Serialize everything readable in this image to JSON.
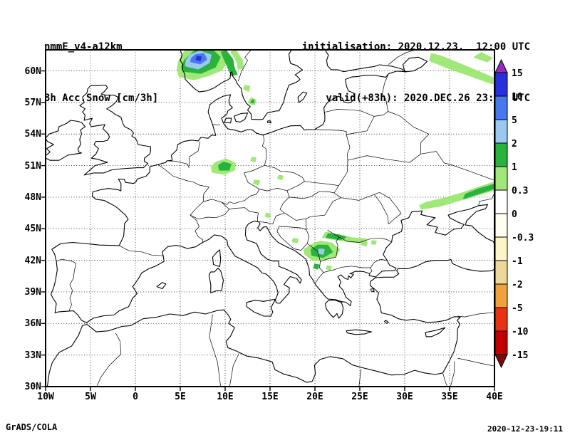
{
  "header": {
    "model": "nmmE_v4-a12km",
    "variable": "3h Acc.Snow [cm/3h]",
    "init": "initialisation: 2020.12.23.  12:00 UTC",
    "valid": "valid(+83h): 2020.DEC.26 23:00 UTC"
  },
  "footer": {
    "left": "GrADS/COLA",
    "right": "2020-12-23-19:11"
  },
  "chart_data": {
    "type": "heatmap",
    "title": "3h Acc.Snow [cm/3h]",
    "region": "Europe",
    "lon_range": [
      -10,
      40
    ],
    "lat_range": [
      30,
      62
    ],
    "grid": {
      "lon_step": 5,
      "lat_step": 3,
      "style": "dotted"
    },
    "x_ticks": [
      {
        "v": -10,
        "label": "10W"
      },
      {
        "v": -5,
        "label": "5W"
      },
      {
        "v": 0,
        "label": "0"
      },
      {
        "v": 5,
        "label": "5E"
      },
      {
        "v": 10,
        "label": "10E"
      },
      {
        "v": 15,
        "label": "15E"
      },
      {
        "v": 20,
        "label": "20E"
      },
      {
        "v": 25,
        "label": "25E"
      },
      {
        "v": 30,
        "label": "30E"
      },
      {
        "v": 35,
        "label": "35E"
      },
      {
        "v": 40,
        "label": "40E"
      }
    ],
    "y_ticks": [
      {
        "v": 30,
        "label": "30N"
      },
      {
        "v": 33,
        "label": "33N"
      },
      {
        "v": 36,
        "label": "36N"
      },
      {
        "v": 39,
        "label": "39N"
      },
      {
        "v": 42,
        "label": "42N"
      },
      {
        "v": 45,
        "label": "45N"
      },
      {
        "v": 48,
        "label": "48N"
      },
      {
        "v": 51,
        "label": "51N"
      },
      {
        "v": 54,
        "label": "54N"
      },
      {
        "v": 57,
        "label": "57N"
      },
      {
        "v": 60,
        "label": "60N"
      }
    ],
    "colorbar": {
      "labels": [
        "15",
        "10",
        "5",
        "2",
        "1",
        "0.3",
        "0",
        "-0.3",
        "-1",
        "-2",
        "-5",
        "-10",
        "-15"
      ],
      "levels": [
        15,
        10,
        5,
        2,
        1,
        0.3,
        0,
        -0.3,
        -1,
        -2,
        -5,
        -10,
        -15
      ],
      "colors_top_to_bottom": [
        "#9628c8",
        "#2830dc",
        "#4678f0",
        "#9ac8f0",
        "#28b43c",
        "#a0e878",
        "#ffffff",
        "#fffef0",
        "#fdf5c8",
        "#ecd898",
        "#f0a03c",
        "#e83214",
        "#c00000",
        "#7a0a0a"
      ]
    },
    "band_colors": {
      "0.3-1": "#a0e878",
      "1-2": "#28b43c",
      "2-5": "#9ac8f0",
      "5-10": "#4678f0",
      "10-15": "#2830dc"
    },
    "snow_patches": [
      {
        "band": "0.3-1",
        "pts": [
          [
            4.9,
            59.5
          ],
          [
            6.5,
            59.2
          ],
          [
            8.2,
            59.6
          ],
          [
            9.6,
            60.1
          ],
          [
            10.1,
            60.9
          ],
          [
            9.8,
            61.8
          ],
          [
            9.0,
            62.0
          ],
          [
            5.6,
            62.0
          ],
          [
            4.9,
            61.0
          ],
          [
            4.7,
            60.2
          ]
        ]
      },
      {
        "band": "0.3-1",
        "pts": [
          [
            11.2,
            61.9
          ],
          [
            11.9,
            61.0
          ],
          [
            12.0,
            60.3
          ],
          [
            11.5,
            60.2
          ],
          [
            11.3,
            61.0
          ],
          [
            10.7,
            61.8
          ]
        ]
      },
      {
        "band": "0.3-1",
        "pts": [
          [
            12.1,
            58.3
          ],
          [
            12.6,
            58.1
          ],
          [
            12.7,
            58.5
          ],
          [
            12.2,
            58.6
          ]
        ]
      },
      {
        "band": "0.3-1",
        "pts": [
          [
            12.6,
            57.0
          ],
          [
            13.2,
            56.8
          ],
          [
            13.4,
            57.2
          ],
          [
            12.9,
            57.4
          ]
        ]
      },
      {
        "band": "0.3-1",
        "pts": [
          [
            32.8,
            61.0
          ],
          [
            34.8,
            60.3
          ],
          [
            36.8,
            59.7
          ],
          [
            38.8,
            59.1
          ],
          [
            39.8,
            58.8
          ],
          [
            39.9,
            59.3
          ],
          [
            38.0,
            60.0
          ],
          [
            36.0,
            60.7
          ],
          [
            34.0,
            61.4
          ],
          [
            33.0,
            61.6
          ]
        ]
      },
      {
        "band": "0.3-1",
        "pts": [
          [
            37.8,
            61.3
          ],
          [
            39.2,
            60.9
          ],
          [
            39.7,
            61.2
          ],
          [
            38.5,
            61.7
          ]
        ]
      },
      {
        "band": "0.3-1",
        "pts": [
          [
            8.6,
            50.4
          ],
          [
            9.9,
            50.2
          ],
          [
            11.0,
            50.6
          ],
          [
            11.1,
            51.2
          ],
          [
            10.1,
            51.6
          ],
          [
            9.0,
            51.3
          ],
          [
            8.5,
            50.9
          ]
        ]
      },
      {
        "band": "0.3-1",
        "pts": [
          [
            13.2,
            49.3
          ],
          [
            13.7,
            49.2
          ],
          [
            13.8,
            49.55
          ],
          [
            13.3,
            49.6
          ]
        ]
      },
      {
        "band": "0.3-1",
        "pts": [
          [
            15.9,
            49.8
          ],
          [
            16.3,
            49.7
          ],
          [
            16.4,
            50.0
          ],
          [
            16.0,
            50.05
          ]
        ]
      },
      {
        "band": "0.3-1",
        "pts": [
          [
            12.9,
            51.5
          ],
          [
            13.3,
            51.4
          ],
          [
            13.4,
            51.7
          ],
          [
            13.0,
            51.75
          ]
        ]
      },
      {
        "band": "0.3-1",
        "pts": [
          [
            31.9,
            46.9
          ],
          [
            34.0,
            47.2
          ],
          [
            36.0,
            47.7
          ],
          [
            38.0,
            48.2
          ],
          [
            40.0,
            48.7
          ],
          [
            40.0,
            49.4
          ],
          [
            38.5,
            49.0
          ],
          [
            36.5,
            48.4
          ],
          [
            34.5,
            47.9
          ],
          [
            32.5,
            47.5
          ],
          [
            31.7,
            47.2
          ]
        ]
      },
      {
        "band": "0.3-1",
        "pts": [
          [
            20.9,
            44.2
          ],
          [
            22.6,
            43.95
          ],
          [
            24.2,
            43.75
          ],
          [
            25.6,
            43.7
          ],
          [
            25.7,
            44.0
          ],
          [
            24.2,
            44.1
          ],
          [
            22.7,
            44.4
          ],
          [
            21.2,
            44.65
          ]
        ]
      },
      {
        "band": "0.3-1",
        "pts": [
          [
            18.9,
            42.6
          ],
          [
            19.8,
            42.0
          ],
          [
            21.2,
            42.1
          ],
          [
            22.3,
            42.4
          ],
          [
            22.7,
            43.0
          ],
          [
            21.9,
            43.6
          ],
          [
            20.6,
            43.8
          ],
          [
            19.5,
            43.4
          ],
          [
            18.8,
            43.0
          ]
        ]
      },
      {
        "band": "0.3-1",
        "pts": [
          [
            25.2,
            43.5
          ],
          [
            25.7,
            43.4
          ],
          [
            25.8,
            43.7
          ],
          [
            25.3,
            43.75
          ]
        ]
      },
      {
        "band": "0.3-1",
        "pts": [
          [
            26.3,
            43.6
          ],
          [
            26.7,
            43.55
          ],
          [
            26.8,
            43.8
          ],
          [
            26.4,
            43.85
          ]
        ]
      },
      {
        "band": "0.3-1",
        "pts": [
          [
            17.5,
            43.8
          ],
          [
            18.0,
            43.7
          ],
          [
            18.1,
            44.0
          ],
          [
            17.6,
            44.05
          ]
        ]
      },
      {
        "band": "0.3-1",
        "pts": [
          [
            14.5,
            46.2
          ],
          [
            14.9,
            46.1
          ],
          [
            15.0,
            46.4
          ],
          [
            14.6,
            46.45
          ]
        ]
      },
      {
        "band": "0.3-1",
        "pts": [
          [
            21.3,
            41.2
          ],
          [
            21.7,
            41.1
          ],
          [
            21.8,
            41.4
          ],
          [
            21.4,
            41.45
          ]
        ]
      },
      {
        "band": "1-2",
        "pts": [
          [
            5.4,
            60.0
          ],
          [
            7.3,
            59.8
          ],
          [
            8.9,
            60.4
          ],
          [
            9.4,
            61.3
          ],
          [
            8.6,
            61.95
          ],
          [
            6.6,
            61.9
          ],
          [
            5.5,
            61.0
          ],
          [
            5.2,
            60.4
          ]
        ]
      },
      {
        "band": "1-2",
        "pts": [
          [
            10.1,
            61.9
          ],
          [
            10.8,
            61.1
          ],
          [
            11.0,
            60.2
          ],
          [
            11.3,
            59.7
          ],
          [
            10.7,
            59.6
          ],
          [
            10.3,
            60.4
          ],
          [
            9.9,
            61.2
          ],
          [
            9.6,
            61.8
          ]
        ]
      },
      {
        "band": "1-2",
        "pts": [
          [
            12.9,
            57.0
          ],
          [
            13.2,
            57.0
          ],
          [
            13.1,
            57.25
          ]
        ]
      },
      {
        "band": "1-2",
        "pts": [
          [
            9.4,
            50.6
          ],
          [
            10.4,
            50.6
          ],
          [
            10.6,
            51.1
          ],
          [
            9.8,
            51.3
          ],
          [
            9.3,
            51.0
          ]
        ]
      },
      {
        "band": "1-2",
        "pts": [
          [
            36.6,
            47.9
          ],
          [
            38.4,
            48.4
          ],
          [
            40.0,
            48.85
          ],
          [
            40.0,
            49.2
          ],
          [
            38.2,
            48.75
          ],
          [
            36.8,
            48.25
          ]
        ]
      },
      {
        "band": "1-2",
        "pts": [
          [
            21.3,
            44.2
          ],
          [
            22.8,
            44.0
          ],
          [
            23.4,
            44.2
          ],
          [
            22.6,
            44.4
          ],
          [
            21.5,
            44.5
          ]
        ]
      },
      {
        "band": "1-2",
        "pts": [
          [
            19.7,
            42.5
          ],
          [
            20.9,
            42.3
          ],
          [
            21.9,
            42.8
          ],
          [
            21.4,
            43.4
          ],
          [
            20.3,
            43.4
          ],
          [
            19.6,
            43.0
          ]
        ]
      },
      {
        "band": "1-2",
        "pts": [
          [
            19.9,
            41.3
          ],
          [
            20.3,
            41.2
          ],
          [
            20.4,
            41.55
          ],
          [
            20.0,
            41.6
          ]
        ]
      },
      {
        "band": "2-5",
        "pts": [
          [
            5.6,
            60.5
          ],
          [
            7.0,
            60.2
          ],
          [
            8.2,
            60.8
          ],
          [
            8.4,
            61.5
          ],
          [
            7.2,
            61.85
          ],
          [
            6.1,
            61.5
          ],
          [
            5.7,
            61.0
          ]
        ]
      },
      {
        "band": "2-5",
        "pts": [
          [
            20.4,
            42.7
          ],
          [
            20.9,
            42.6
          ],
          [
            21.0,
            43.0
          ],
          [
            20.5,
            43.05
          ]
        ]
      },
      {
        "band": "5-10",
        "pts": [
          [
            6.2,
            60.9
          ],
          [
            7.2,
            60.7
          ],
          [
            7.9,
            61.1
          ],
          [
            7.6,
            61.6
          ],
          [
            6.7,
            61.5
          ],
          [
            6.3,
            61.2
          ]
        ]
      },
      {
        "band": "10-15",
        "pts": [
          [
            6.8,
            61.1
          ],
          [
            7.2,
            61.0
          ],
          [
            7.3,
            61.3
          ],
          [
            6.9,
            61.35
          ]
        ]
      }
    ]
  }
}
